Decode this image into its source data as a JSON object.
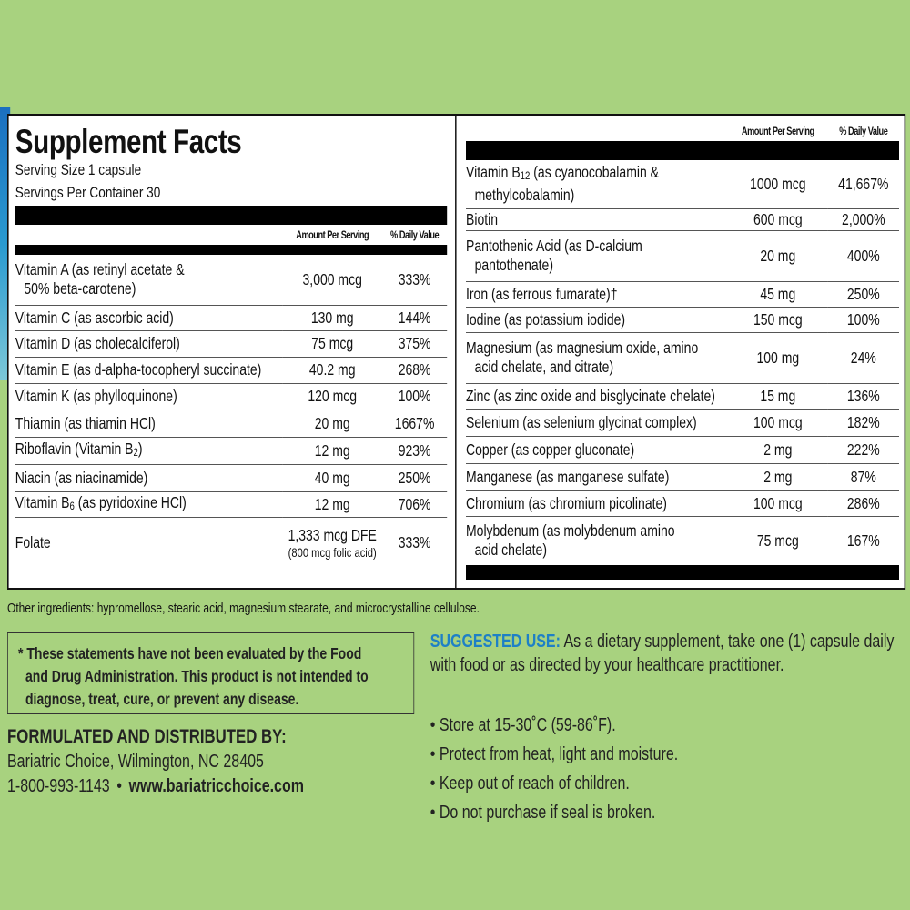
{
  "colors": {
    "background": "#a8d27f",
    "accent": "#1e80c6"
  },
  "title": "Supplement Facts",
  "serving_size": "Serving Size 1 capsule",
  "servings_per_container": "Servings Per Container 30",
  "col_amount": "Amount Per Serving",
  "col_dv": "% Daily Value",
  "left_rows": [
    {
      "name": "Vitamin A (as retinyl acetate &",
      "name2": "50% beta-carotene)",
      "amount": "3,000 mcg",
      "dv": "333%"
    },
    {
      "name": "Vitamin C (as ascorbic acid)",
      "amount": "130 mg",
      "dv": "144%"
    },
    {
      "name": "Vitamin D (as cholecalciferol)",
      "amount": "75 mcg",
      "dv": "375%"
    },
    {
      "name": "Vitamin E (as d-alpha-tocopheryl succinate)",
      "amount": "40.2 mg",
      "dv": "268%"
    },
    {
      "name": "Vitamin K (as phylloquinone)",
      "amount": "120 mcg",
      "dv": "100%"
    },
    {
      "name": "Thiamin (as thiamin HCl)",
      "amount": "20 mg",
      "dv": "1667%"
    },
    {
      "name": "Riboflavin (Vitamin B",
      "sub": "2",
      "post": ")",
      "amount": "12 mg",
      "dv": "923%"
    },
    {
      "name": "Niacin (as niacinamide)",
      "amount": "40 mg",
      "dv": "250%"
    },
    {
      "name": "Vitamin B",
      "sub": "6",
      "post": " (as pyridoxine HCl)",
      "amount": "12 mg",
      "dv": "706%"
    },
    {
      "name": "Folate",
      "amount": "1,333 mcg DFE",
      "amount2": "(800 mcg folic acid)",
      "dv": "333%"
    }
  ],
  "right_rows": [
    {
      "name": "Vitamin B",
      "sub": "12",
      "post": " (as cyanocobalamin &",
      "name2": "methylcobalamin)",
      "amount": "1000 mcg",
      "dv": "41,667%"
    },
    {
      "name": "Biotin",
      "amount": "600 mcg",
      "dv": "2,000%"
    },
    {
      "name": "Pantothenic Acid (as D-calcium",
      "name2": "pantothenate)",
      "amount": "20 mg",
      "dv": "400%"
    },
    {
      "name": "Iron (as ferrous fumarate)†",
      "amount": "45 mg",
      "dv": "250%"
    },
    {
      "name": "Iodine (as potassium iodide)",
      "amount": "150 mcg",
      "dv": "100%"
    },
    {
      "name": "Magnesium (as magnesium oxide, amino",
      "name2": "acid chelate, and citrate)",
      "amount": "100 mg",
      "dv": "24%"
    },
    {
      "name": "Zinc (as zinc oxide and bisglycinate chelate)",
      "amount": "15 mg",
      "dv": "136%"
    },
    {
      "name": "Selenium (as selenium glycinat complex)",
      "amount": "100 mcg",
      "dv": "182%"
    },
    {
      "name": "Copper (as copper gluconate)",
      "amount": "2 mg",
      "dv": "222%"
    },
    {
      "name": "Manganese (as manganese sulfate)",
      "amount": "2 mg",
      "dv": "87%"
    },
    {
      "name": "Chromium (as chromium picolinate)",
      "amount": "100 mcg",
      "dv": "286%"
    },
    {
      "name": "Molybdenum (as molybdenum amino",
      "name2": "acid chelate)",
      "amount": "75 mcg",
      "dv": "167%"
    }
  ],
  "other_ingredients": "Other ingredients: hypromellose, stearic acid, magnesium stearate, and microcrystalline cellulose.",
  "disclaimer": {
    "line1": "* These statements have not been evaluated by the Food",
    "line2": "and Drug Administration. This product is not intended to",
    "line3": "diagnose, treat, cure, or prevent any disease."
  },
  "distributor": {
    "heading": "FORMULATED AND DISTRIBUTED BY:",
    "address": "Bariatric Choice, Wilmington, NC 28405",
    "phone": "1-800-993-1143",
    "separator": "•",
    "website": "www.bariatricchoice.com"
  },
  "suggested_use": {
    "label": "SUGGESTED USE:",
    "text": " As a dietary supplement, take one (1) capsule daily with food or as directed by your healthcare practitioner."
  },
  "storage": [
    "• Store at 15-30˚C (59-86˚F).",
    "• Protect from heat, light and moisture.",
    "• Keep out of reach of children.",
    "• Do not purchase if seal is broken."
  ]
}
